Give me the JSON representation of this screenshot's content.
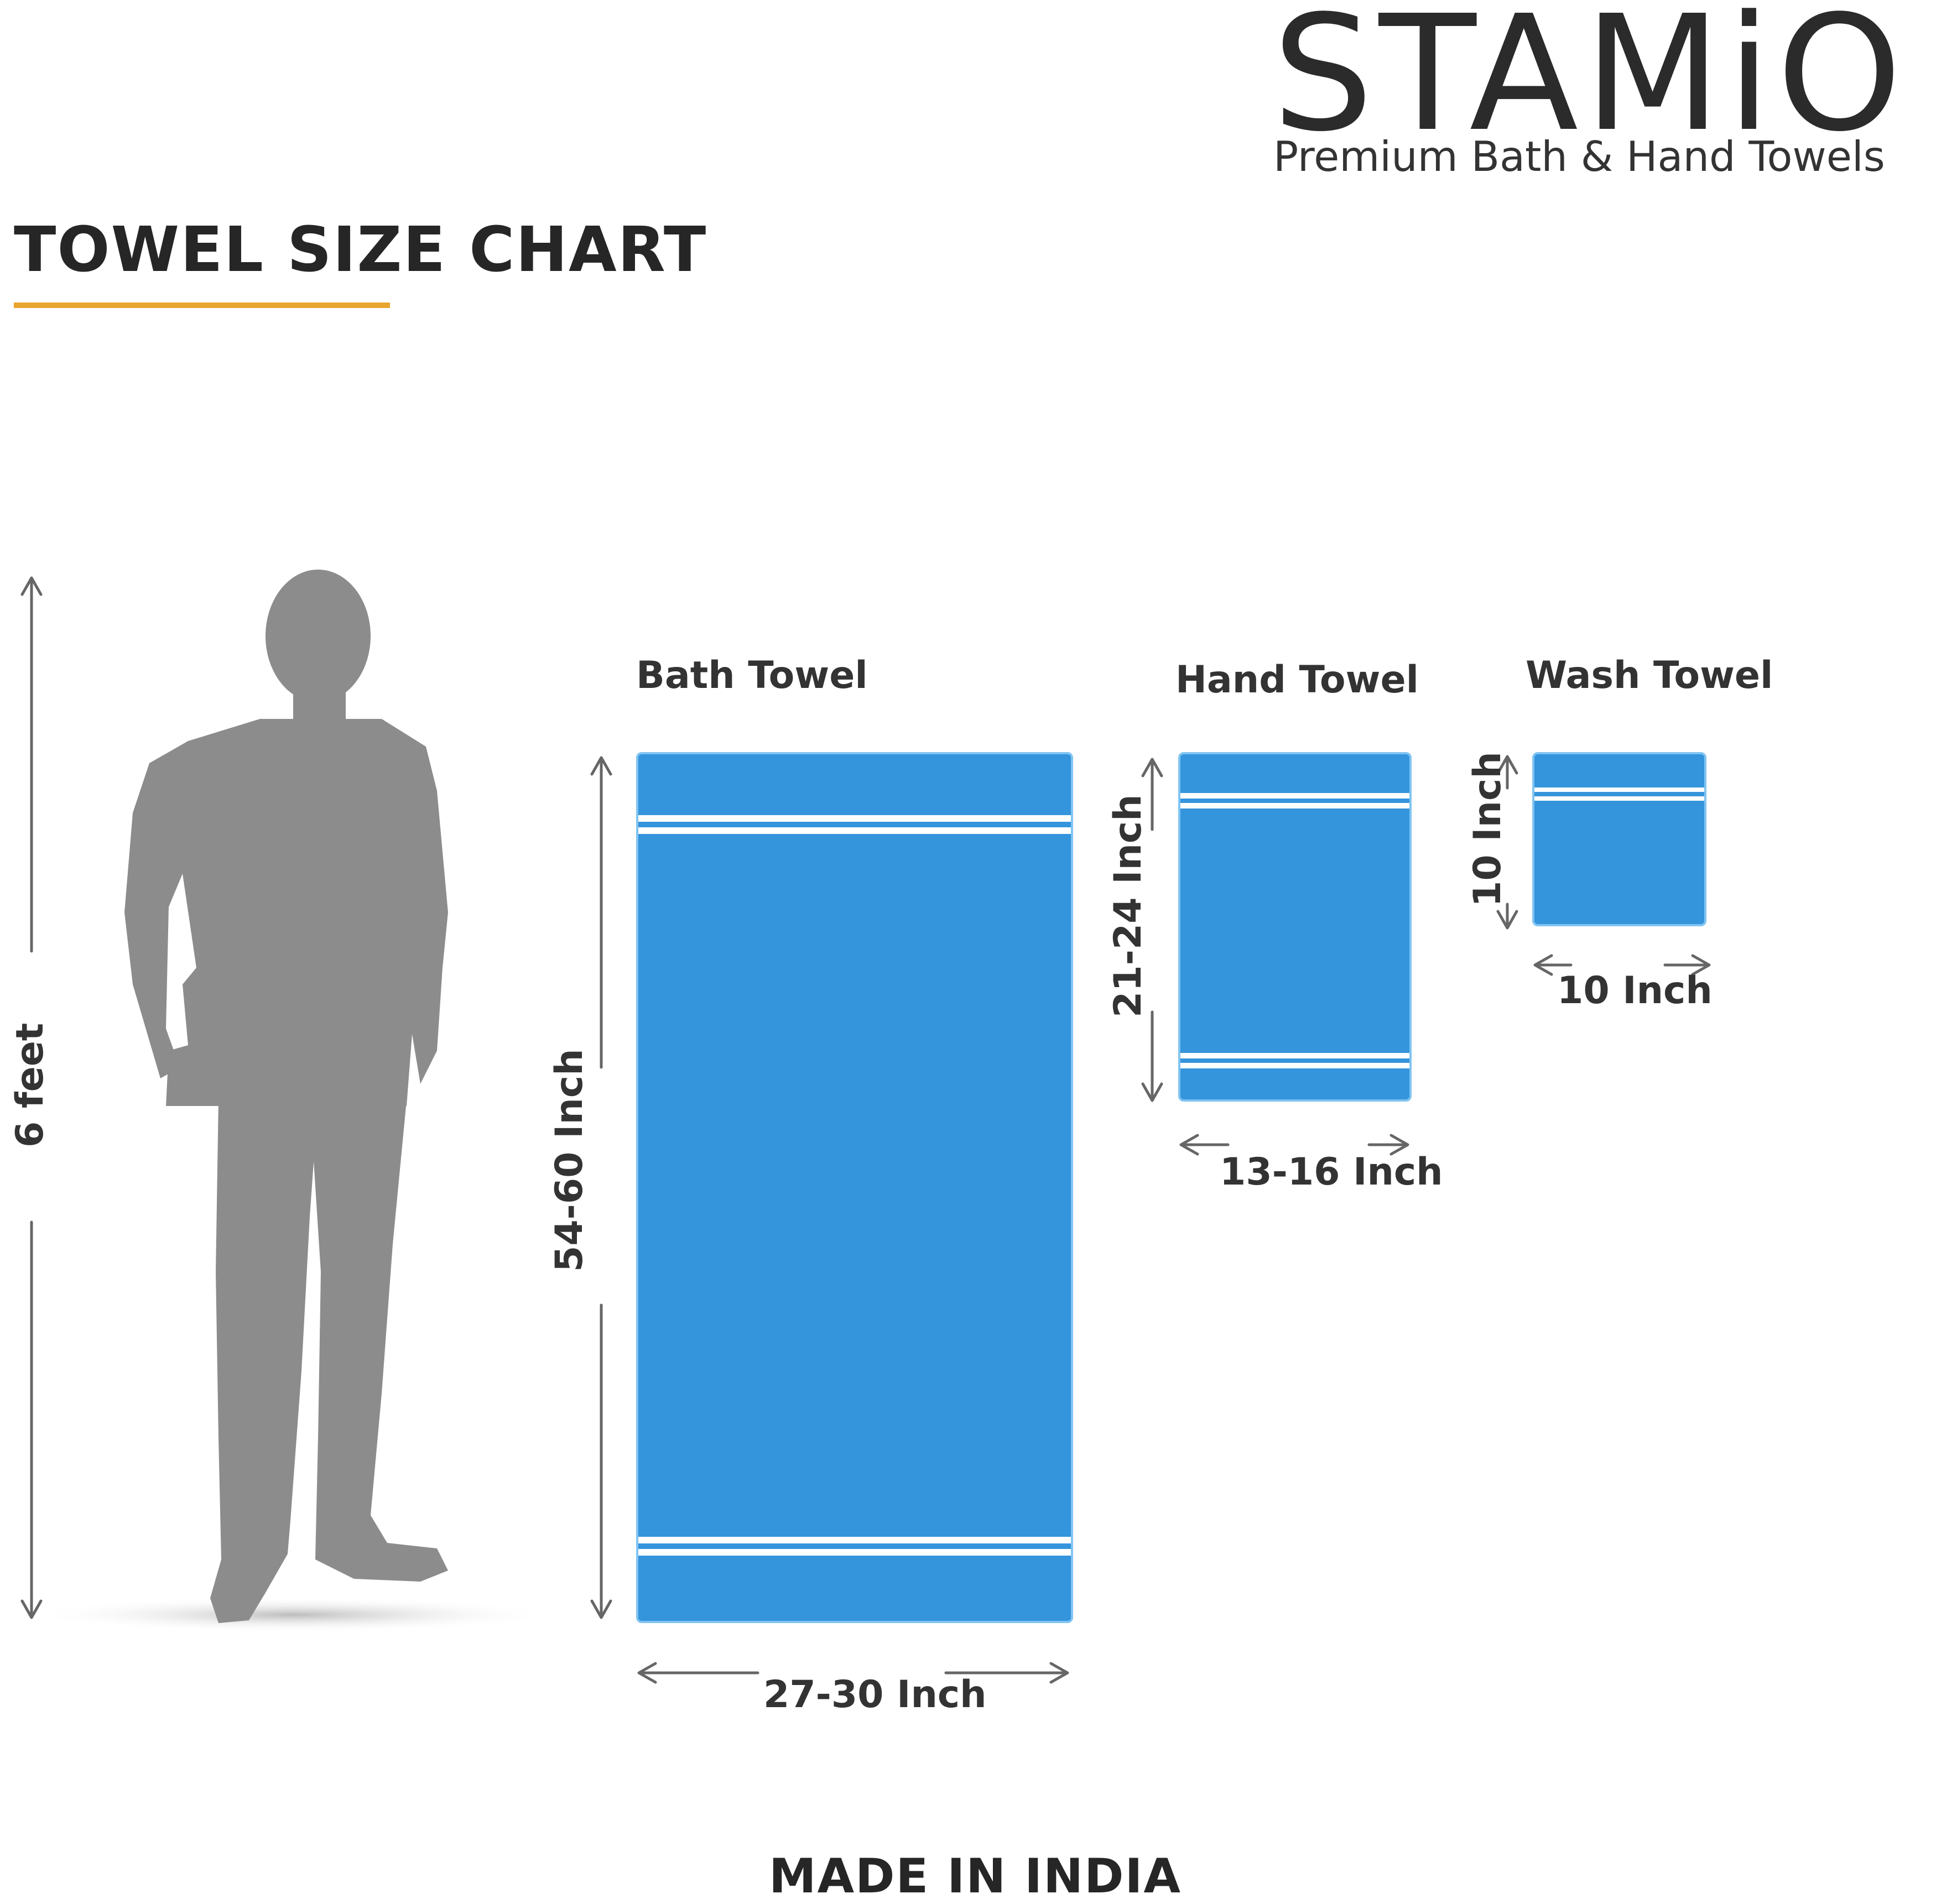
{
  "brand": {
    "name": "STAMiO",
    "tagline": "Premium Bath & Hand Towels"
  },
  "chart": {
    "title": "TOWEL SIZE CHART",
    "title_underline_color": "#e8a531"
  },
  "person": {
    "height_label": "6 feet",
    "silhouette_color": "#8c8c8c"
  },
  "towels": [
    {
      "name": "Bath Towel",
      "length_label": "54-60 Inch",
      "width_label": "27-30 Inch",
      "color": "#3494dc"
    },
    {
      "name": "Hand Towel",
      "length_label": "21-24 Inch",
      "width_label": "13-16 Inch",
      "color": "#3494dc"
    },
    {
      "name": "Wash Towel",
      "length_label": "10 Inch",
      "width_label": "10 Inch",
      "color": "#3494dc"
    }
  ],
  "footer": {
    "origin": "MADE IN INDIA"
  }
}
